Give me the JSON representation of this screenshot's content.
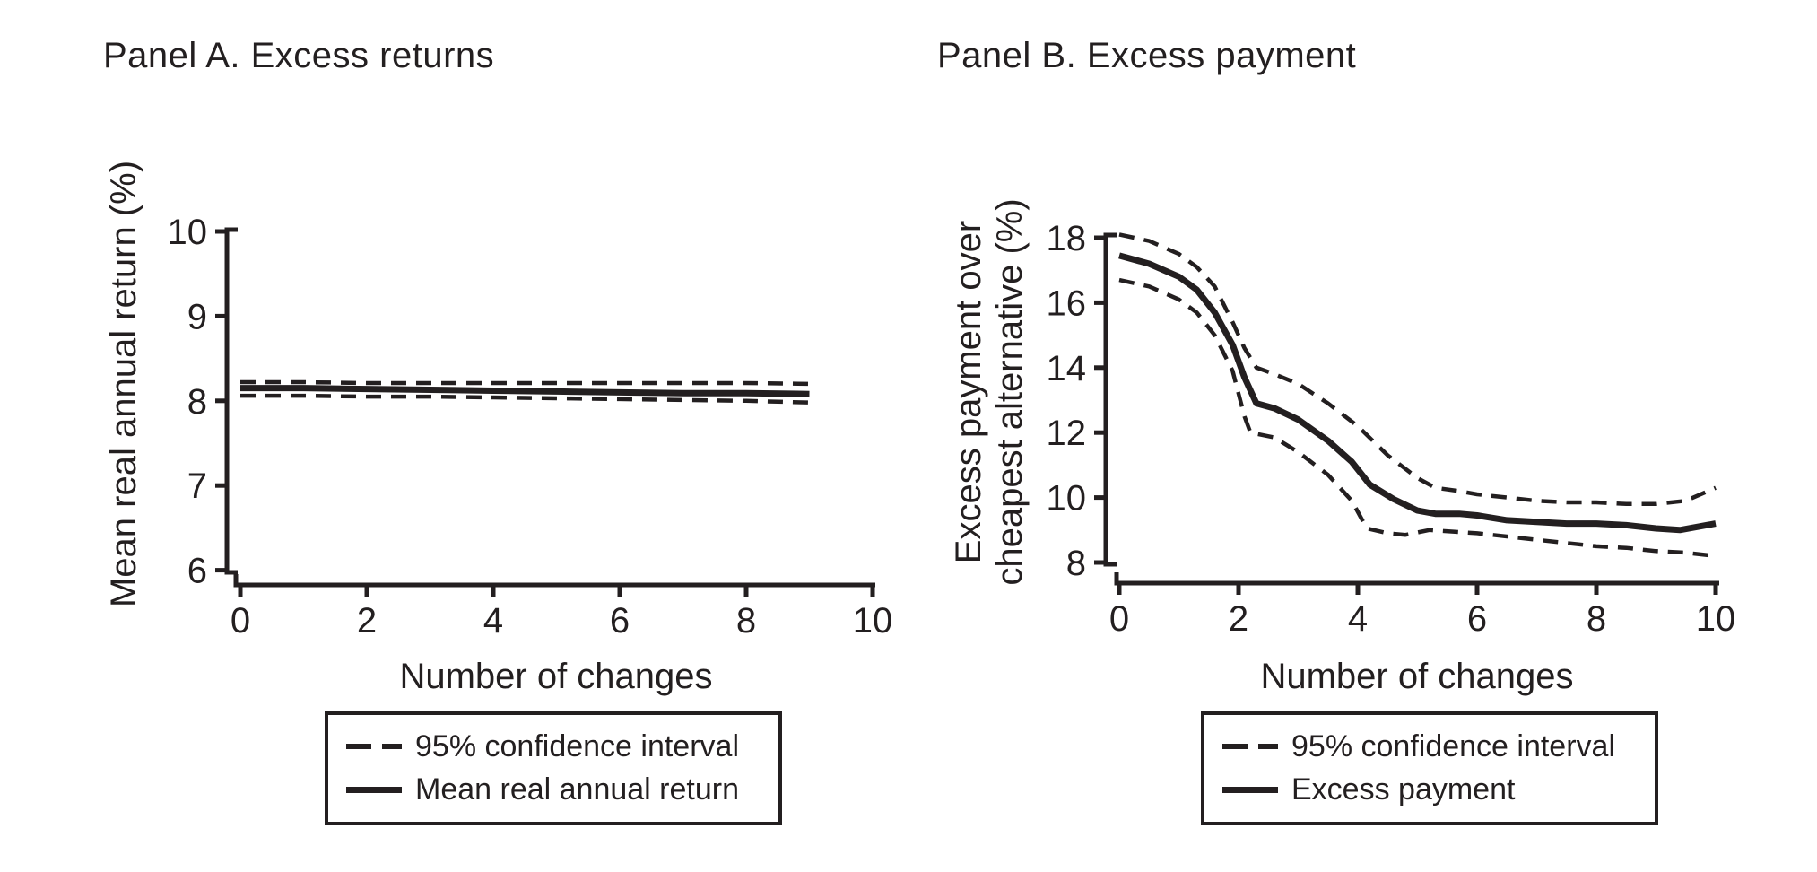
{
  "colors": {
    "ink": "#231f20",
    "background": "#ffffff"
  },
  "figure": {
    "panels": [
      {
        "title": "Panel A. Excess returns",
        "xlabel": "Number of changes",
        "ylabel_lines": [
          "Mean real annual return (%)"
        ],
        "legend": [
          {
            "style": "dashed",
            "label": "95% confidence interval"
          },
          {
            "style": "solid",
            "label": "Mean real annual return"
          }
        ]
      },
      {
        "title": "Panel B. Excess payment",
        "xlabel": "Number of changes",
        "ylabel_lines": [
          "Excess payment over",
          "cheapest alternative (%)"
        ],
        "legend": [
          {
            "style": "dashed",
            "label": "95% confidence interval"
          },
          {
            "style": "solid",
            "label": "Excess payment"
          }
        ]
      }
    ]
  },
  "chart_data": [
    {
      "type": "line",
      "title": "Panel A. Excess returns",
      "xlabel": "Number of changes",
      "ylabel": "Mean real annual return (%)",
      "xlim": [
        0,
        10
      ],
      "ylim": [
        6,
        10
      ],
      "xticks": [
        0,
        2,
        4,
        6,
        8,
        10
      ],
      "yticks": [
        6,
        7,
        8,
        9,
        10
      ],
      "grid": false,
      "legend_position": "bottom",
      "series": [
        {
          "name": "95% confidence interval (upper)",
          "style": "dashed",
          "x": [
            0,
            1,
            2,
            3,
            4,
            5,
            6,
            7,
            8,
            9
          ],
          "y": [
            8.22,
            8.22,
            8.21,
            8.21,
            8.21,
            8.21,
            8.21,
            8.21,
            8.21,
            8.2
          ]
        },
        {
          "name": "95% confidence interval (lower)",
          "style": "dashed",
          "x": [
            0,
            1,
            2,
            3,
            4,
            5,
            6,
            7,
            8,
            9
          ],
          "y": [
            8.06,
            8.06,
            8.05,
            8.05,
            8.04,
            8.03,
            8.02,
            8.01,
            8.0,
            7.98
          ]
        },
        {
          "name": "Mean real annual return",
          "style": "solid",
          "x": [
            0,
            1,
            2,
            3,
            4,
            5,
            6,
            7,
            8,
            9
          ],
          "y": [
            8.15,
            8.15,
            8.14,
            8.13,
            8.12,
            8.11,
            8.1,
            8.09,
            8.09,
            8.08
          ]
        }
      ]
    },
    {
      "type": "line",
      "title": "Panel B. Excess payment",
      "xlabel": "Number of changes",
      "ylabel": "Excess payment over cheapest alternative (%)",
      "xlim": [
        0,
        10
      ],
      "ylim": [
        8,
        18
      ],
      "xticks": [
        0,
        2,
        4,
        6,
        8,
        10
      ],
      "yticks": [
        8,
        10,
        12,
        14,
        16,
        18
      ],
      "grid": false,
      "legend_position": "bottom",
      "series": [
        {
          "name": "95% confidence interval (upper)",
          "style": "dashed",
          "x": [
            0,
            0.5,
            1,
            1.3,
            1.6,
            1.9,
            2.1,
            2.3,
            2.6,
            3,
            3.5,
            4,
            4.5,
            5,
            5.3,
            5.7,
            6,
            6.5,
            7,
            7.5,
            8,
            8.5,
            9,
            9.5,
            10
          ],
          "y": [
            18.1,
            17.9,
            17.5,
            17.1,
            16.5,
            15.4,
            14.6,
            14.0,
            13.8,
            13.5,
            12.9,
            12.2,
            11.3,
            10.6,
            10.3,
            10.2,
            10.1,
            10.0,
            9.9,
            9.85,
            9.85,
            9.8,
            9.8,
            9.9,
            10.3
          ]
        },
        {
          "name": "95% confidence interval (lower)",
          "style": "dashed",
          "x": [
            0,
            0.5,
            1,
            1.3,
            1.6,
            1.9,
            2.1,
            2.2,
            2.6,
            3,
            3.5,
            3.9,
            4.15,
            4.5,
            4.8,
            5.2,
            5.6,
            6,
            6.5,
            7,
            7.5,
            8,
            8.5,
            9,
            9.5,
            10
          ],
          "y": [
            16.7,
            16.5,
            16.1,
            15.7,
            15.0,
            13.9,
            12.5,
            12.0,
            11.85,
            11.4,
            10.7,
            9.9,
            9.05,
            8.9,
            8.85,
            9.0,
            8.95,
            8.9,
            8.8,
            8.7,
            8.6,
            8.5,
            8.45,
            8.35,
            8.3,
            8.2
          ]
        },
        {
          "name": "Excess payment",
          "style": "solid",
          "x": [
            0,
            0.5,
            1,
            1.3,
            1.6,
            1.9,
            2.1,
            2.3,
            2.6,
            3,
            3.5,
            3.9,
            4.2,
            4.6,
            5.0,
            5.3,
            5.7,
            6,
            6.5,
            7,
            7.5,
            8,
            8.5,
            9,
            9.4,
            10
          ],
          "y": [
            17.45,
            17.2,
            16.8,
            16.4,
            15.7,
            14.7,
            13.7,
            12.9,
            12.75,
            12.4,
            11.75,
            11.1,
            10.4,
            9.95,
            9.6,
            9.5,
            9.5,
            9.45,
            9.3,
            9.25,
            9.2,
            9.2,
            9.15,
            9.05,
            9.0,
            9.2
          ]
        }
      ]
    }
  ]
}
